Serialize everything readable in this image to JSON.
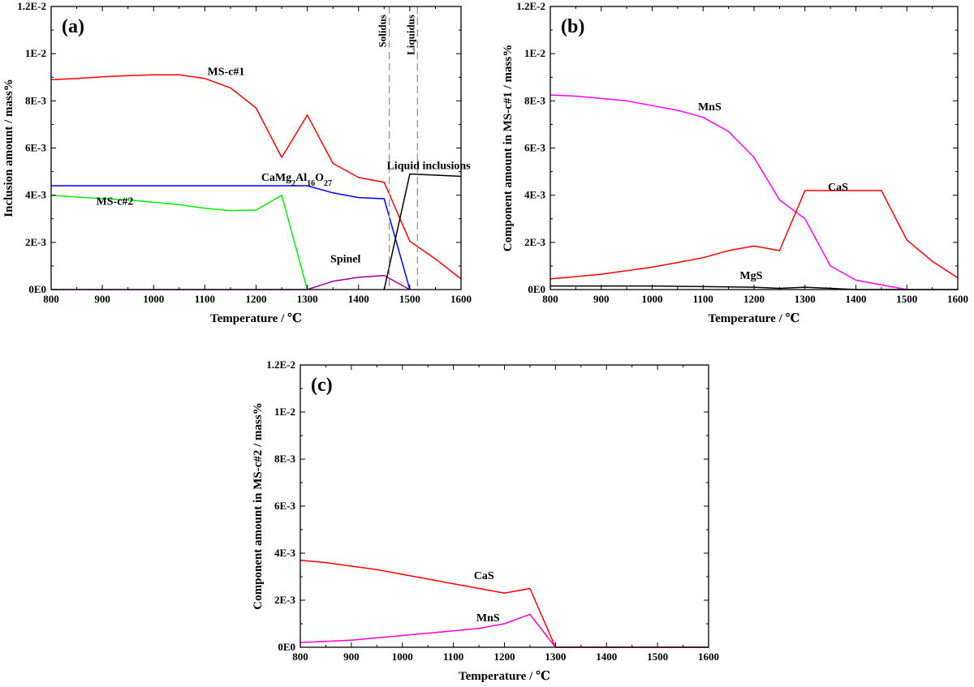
{
  "chart_data": [
    {
      "type": "line",
      "panel": "(a)",
      "xlabel": "Temperature / ℃",
      "ylabel": "Inclusion amount / mass%",
      "xlim": [
        800,
        1600
      ],
      "ylim": [
        0,
        0.012
      ],
      "xticks": [
        800,
        900,
        1000,
        1100,
        1200,
        1300,
        1400,
        1500,
        1600
      ],
      "yticks": [
        {
          "value": 0,
          "label": "0E0"
        },
        {
          "value": 0.002,
          "label": "2E-3"
        },
        {
          "value": 0.004,
          "label": "4E-3"
        },
        {
          "value": 0.006,
          "label": "6E-3"
        },
        {
          "value": 0.008,
          "label": "8E-3"
        },
        {
          "value": 0.01,
          "label": "1E-2"
        },
        {
          "value": 0.012,
          "label": "1.2E-2"
        }
      ],
      "grid": false,
      "vertical_markers": [
        {
          "label": "Solidus",
          "x": 1460
        },
        {
          "label": "Liquidus",
          "x": 1515
        }
      ],
      "series": [
        {
          "name": "MS-c#1",
          "color": "#ff0000",
          "label_at": [
            1105,
            0.0091
          ],
          "x": [
            800,
            850,
            900,
            950,
            1000,
            1050,
            1100,
            1150,
            1200,
            1250,
            1300,
            1350,
            1400,
            1450,
            1500,
            1550,
            1600
          ],
          "y": [
            0.0089,
            0.00895,
            0.00902,
            0.00907,
            0.0091,
            0.0091,
            0.00895,
            0.00855,
            0.0077,
            0.0056,
            0.0074,
            0.00535,
            0.00475,
            0.00455,
            0.00205,
            0.0013,
            0.00045
          ]
        },
        {
          "name": "CaMg₂Al₁₆O₂₇",
          "color": "#0000ff",
          "label_at": [
            1210,
            0.0046
          ],
          "x": [
            800,
            900,
            1000,
            1100,
            1200,
            1300,
            1350,
            1400,
            1450,
            1500
          ],
          "y": [
            0.0044,
            0.0044,
            0.0044,
            0.0044,
            0.0044,
            0.0044,
            0.0041,
            0.0039,
            0.00385,
            0
          ]
        },
        {
          "name": "MS-c#2",
          "color": "#00ee00",
          "label_at": [
            888,
            0.0036
          ],
          "x": [
            800,
            900,
            950,
            1000,
            1050,
            1100,
            1150,
            1200,
            1250,
            1300
          ],
          "y": [
            0.004,
            0.00385,
            0.0038,
            0.0037,
            0.0036,
            0.00345,
            0.00335,
            0.00337,
            0.004,
            0
          ]
        },
        {
          "name": "Spinel",
          "color": "#990099",
          "label_at": [
            1345,
            0.00115
          ],
          "x": [
            800,
            1300,
            1350,
            1400,
            1450,
            1500
          ],
          "y": [
            0,
            0,
            0.00035,
            0.00052,
            0.0006,
            0
          ]
        },
        {
          "name": "Liquid inclusions",
          "color": "#000000",
          "label_at": [
            1455,
            0.0051
          ],
          "x": [
            1450,
            1500,
            1600
          ],
          "y": [
            0,
            0.0049,
            0.0048
          ]
        }
      ]
    },
    {
      "type": "line",
      "panel": "(b)",
      "xlabel": "Temperature / ℃",
      "ylabel": "Component amount in MS-c#1 / mass%",
      "xlim": [
        800,
        1600
      ],
      "ylim": [
        0,
        0.012
      ],
      "xticks": [
        800,
        900,
        1000,
        1100,
        1200,
        1300,
        1400,
        1500,
        1600
      ],
      "yticks": [
        {
          "value": 0,
          "label": "0E0"
        },
        {
          "value": 0.002,
          "label": "2E-3"
        },
        {
          "value": 0.004,
          "label": "4E-3"
        },
        {
          "value": 0.006,
          "label": "6E-3"
        },
        {
          "value": 0.008,
          "label": "8E-3"
        },
        {
          "value": 0.01,
          "label": "1E-2"
        },
        {
          "value": 0.012,
          "label": "1.2E-2"
        }
      ],
      "grid": false,
      "series": [
        {
          "name": "MnS",
          "color": "#ff00ff",
          "label_at": [
            1090,
            0.0076
          ],
          "x": [
            800,
            850,
            900,
            950,
            1000,
            1050,
            1100,
            1150,
            1200,
            1250,
            1300,
            1350,
            1400,
            1450,
            1500
          ],
          "y": [
            0.00825,
            0.0082,
            0.0081,
            0.008,
            0.0078,
            0.0076,
            0.0073,
            0.0067,
            0.0056,
            0.0038,
            0.003,
            0.001,
            0.0004,
            0.0002,
            0
          ]
        },
        {
          "name": "CaS",
          "color": "#ff0000",
          "label_at": [
            1345,
            0.0042
          ],
          "x": [
            800,
            850,
            900,
            950,
            1000,
            1050,
            1100,
            1150,
            1200,
            1250,
            1300,
            1350,
            1400,
            1450,
            1500,
            1550,
            1600
          ],
          "y": [
            0.00045,
            0.00055,
            0.00065,
            0.0008,
            0.00095,
            0.00115,
            0.00135,
            0.00165,
            0.00185,
            0.00165,
            0.0042,
            0.0042,
            0.0042,
            0.0042,
            0.0021,
            0.0012,
            0.0005
          ]
        },
        {
          "name": "MgS",
          "color": "#000000",
          "label_at": [
            1172,
            0.00045
          ],
          "x": [
            800,
            1000,
            1200,
            1250,
            1300,
            1350,
            1400,
            1450,
            1500,
            1600
          ],
          "y": [
            0.00015,
            0.00015,
            0.0001,
            5e-05,
            0.0001,
            5e-05,
            0,
            0,
            0,
            0
          ]
        }
      ]
    },
    {
      "type": "line",
      "panel": "(c)",
      "xlabel": "Temperature / ℃",
      "ylabel": "Component amount in MS-c#2 / mass%",
      "xlim": [
        800,
        1600
      ],
      "ylim": [
        0,
        0.012
      ],
      "xticks": [
        800,
        900,
        1000,
        1100,
        1200,
        1300,
        1400,
        1500,
        1600
      ],
      "yticks": [
        {
          "value": 0,
          "label": "0E0"
        },
        {
          "value": 0.002,
          "label": "2E-3"
        },
        {
          "value": 0.004,
          "label": "4E-3"
        },
        {
          "value": 0.006,
          "label": "6E-3"
        },
        {
          "value": 0.008,
          "label": "8E-3"
        },
        {
          "value": 0.01,
          "label": "1E-2"
        },
        {
          "value": 0.012,
          "label": "1.2E-2"
        }
      ],
      "grid": false,
      "series": [
        {
          "name": "CaS",
          "color": "#ff0000",
          "label_at": [
            1140,
            0.0029
          ],
          "x": [
            800,
            850,
            900,
            950,
            1000,
            1050,
            1100,
            1150,
            1200,
            1250,
            1300,
            1600
          ],
          "y": [
            0.0037,
            0.0036,
            0.00345,
            0.0033,
            0.0031,
            0.0029,
            0.0027,
            0.0025,
            0.0023,
            0.0025,
            0,
            0
          ]
        },
        {
          "name": "MnS",
          "color": "#ff00cc",
          "label_at": [
            1145,
            0.0011
          ],
          "x": [
            800,
            850,
            900,
            950,
            1000,
            1050,
            1100,
            1150,
            1200,
            1250,
            1300,
            1600
          ],
          "y": [
            0.0002,
            0.00025,
            0.0003,
            0.0004,
            0.0005,
            0.0006,
            0.0007,
            0.0008,
            0.001,
            0.0014,
            0,
            0
          ]
        }
      ]
    }
  ]
}
